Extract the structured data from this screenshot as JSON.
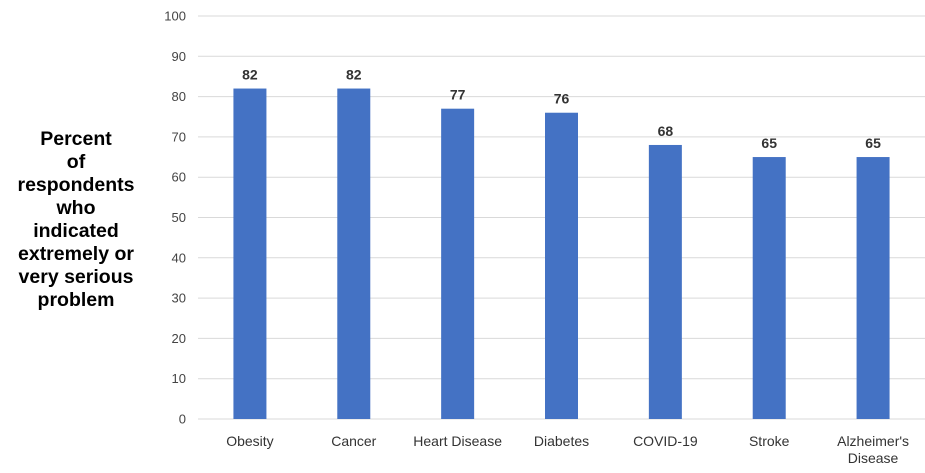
{
  "chart_data": {
    "type": "bar",
    "title": "",
    "ylabel": "Percent of respondents who indicated extremely or very serious problem",
    "ylabel_lines": [
      "Percent",
      "of",
      "respondents",
      "who",
      "indicated",
      "extremely or",
      "very serious",
      "problem"
    ],
    "xlabel": "",
    "categories": [
      "Obesity",
      "Cancer",
      "Heart Disease",
      "Diabetes",
      "COVID-19",
      "Stroke",
      "Alzheimer's Disease"
    ],
    "category_lines": [
      [
        "Obesity"
      ],
      [
        "Cancer"
      ],
      [
        "Heart Disease"
      ],
      [
        "Diabetes"
      ],
      [
        "COVID-19"
      ],
      [
        "Stroke"
      ],
      [
        "Alzheimer's",
        "Disease"
      ]
    ],
    "values": [
      82,
      82,
      77,
      76,
      68,
      65,
      65
    ],
    "ylim": [
      0,
      100
    ],
    "yticks": [
      0,
      10,
      20,
      30,
      40,
      50,
      60,
      70,
      80,
      90,
      100
    ],
    "grid": true,
    "legend": "none",
    "bar_color": "#4472C4",
    "grid_color": "#D9D9D9"
  }
}
